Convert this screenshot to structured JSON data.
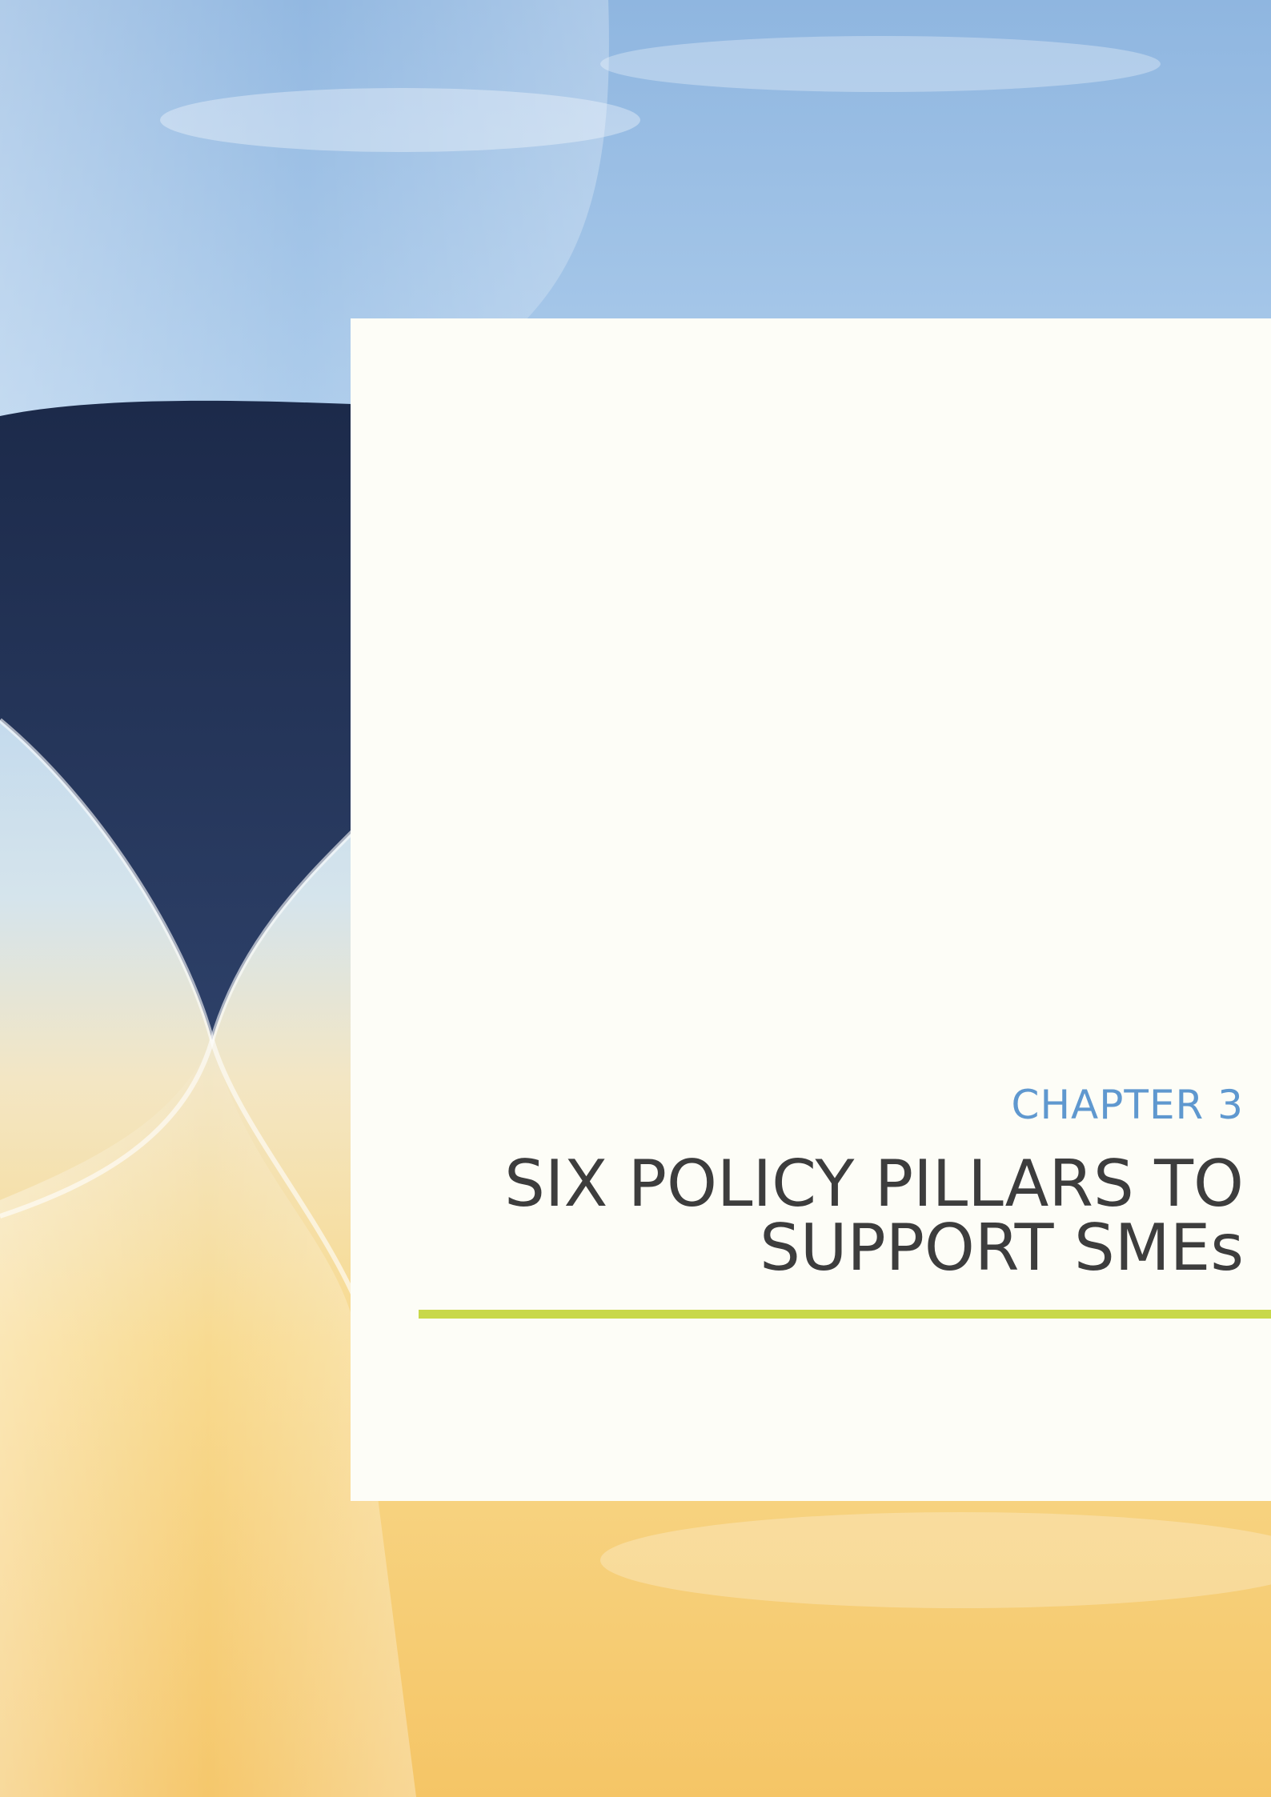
{
  "chapter": "CHAPTER 3",
  "title": [
    "SIX POLICY PILLARS TO",
    "SUPPORT SMEs"
  ]
}
